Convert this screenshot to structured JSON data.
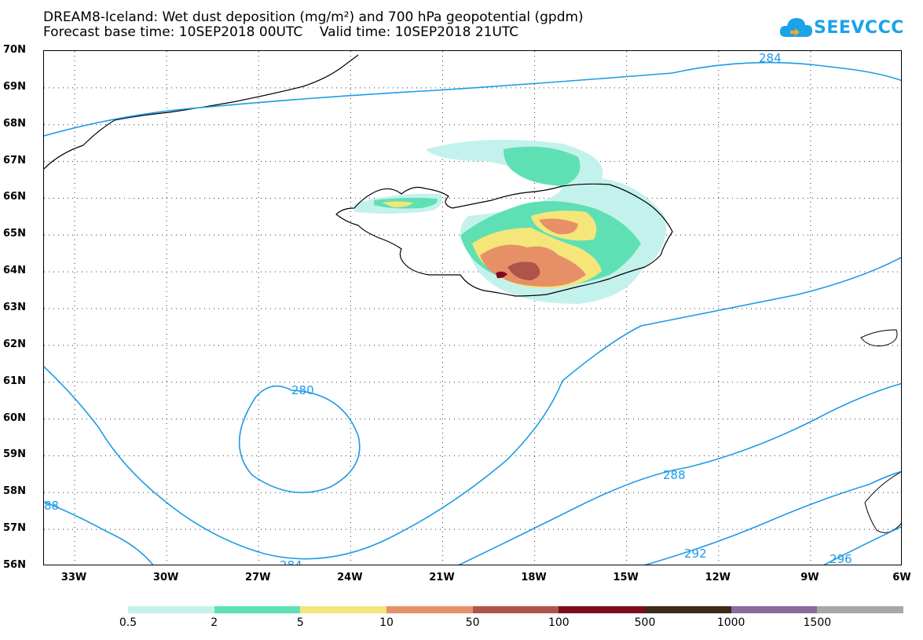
{
  "header": {
    "title_line1": "DREAM8-Iceland: Wet dust deposition (mg/m²) and 700 hPa geopotential (gpdm)",
    "title_line2": "Forecast base time: 10SEP2018 00UTC    Valid time: 10SEP2018 21UTC"
  },
  "logo": {
    "text": "SEEVCCC",
    "icon": "cloud-icon"
  },
  "map": {
    "lat_labels": [
      "70N",
      "69N",
      "68N",
      "67N",
      "66N",
      "65N",
      "64N",
      "63N",
      "62N",
      "61N",
      "60N",
      "59N",
      "58N",
      "57N",
      "56N"
    ],
    "lon_labels": [
      "33W",
      "30W",
      "27W",
      "24W",
      "21W",
      "18W",
      "15W",
      "12W",
      "9W",
      "6W"
    ],
    "lat_range": [
      56,
      70
    ],
    "lon_range": [
      -34.0,
      -6.0
    ],
    "grid": "dotted",
    "contour_labels": [
      "284",
      "280",
      "288",
      "88",
      "284",
      "292",
      "296"
    ],
    "line_color": "#1e9be6"
  },
  "legend": {
    "colors": [
      "#c3f2ec",
      "#5fe0b4",
      "#f5e67a",
      "#e79068",
      "#ad554a",
      "#800b1f",
      "#3a2a18",
      "#8b6a9c",
      "#a8a8a8"
    ],
    "labels": [
      "0.5",
      "2",
      "5",
      "10",
      "50",
      "100",
      "500",
      "1000",
      "1500"
    ]
  }
}
